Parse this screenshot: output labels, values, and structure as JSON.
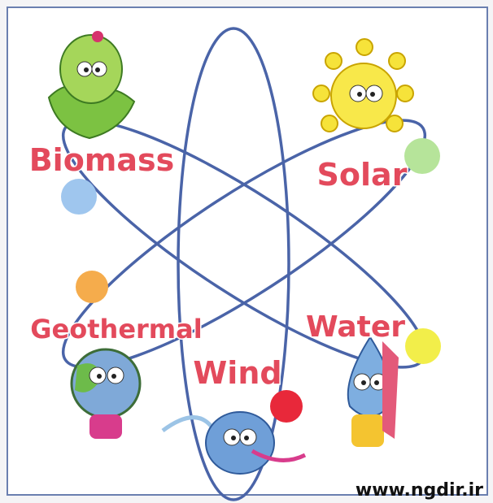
{
  "nodes": [
    {
      "label": "Biomass"
    },
    {
      "label": "Solar"
    },
    {
      "label": "Geothermal"
    },
    {
      "label": "Water"
    },
    {
      "label": "Wind"
    }
  ],
  "watermark": "www.ngdir.ir"
}
